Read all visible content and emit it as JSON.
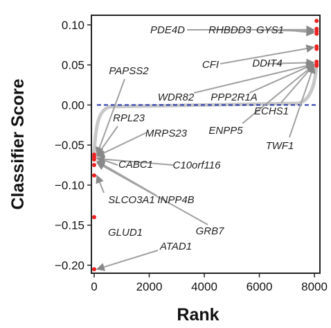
{
  "chart_data": {
    "type": "scatter",
    "title": "",
    "xlabel": "Rank",
    "ylabel": "Classifier Score",
    "xlim": [
      -100,
      8200
    ],
    "ylim": [
      -0.21,
      0.112
    ],
    "xticks": [
      0,
      2000,
      4000,
      6000,
      8000
    ],
    "xtick_labels": [
      "0",
      "2000",
      "4000",
      "6000",
      "8000"
    ],
    "yticks": [
      0.1,
      0.05,
      0.0,
      -0.05,
      -0.1,
      -0.15,
      -0.2
    ],
    "ytick_labels": [
      "0.10",
      "0.05",
      "0.00",
      "−0.05",
      "−0.10",
      "−0.15",
      "−0.20"
    ],
    "reference_line": {
      "y": 0.0,
      "style": "dashed",
      "color": "#2233aa"
    },
    "colors": {
      "highlight": "#ee2222",
      "background_points": "#c8c8c8",
      "arrow": "#a0a0a0"
    },
    "points": [
      {
        "x": 1,
        "y": -0.205
      },
      {
        "x": 1,
        "y": -0.14
      },
      {
        "x": 1,
        "y": -0.088
      },
      {
        "x": 1,
        "y": -0.075
      },
      {
        "x": 1,
        "y": -0.068
      },
      {
        "x": 1,
        "y": -0.065
      },
      {
        "x": 1,
        "y": -0.062
      },
      {
        "x": 8080,
        "y": 0.105
      },
      {
        "x": 8080,
        "y": 0.095
      },
      {
        "x": 8080,
        "y": 0.092
      },
      {
        "x": 8080,
        "y": 0.089
      },
      {
        "x": 8080,
        "y": 0.073
      },
      {
        "x": 8080,
        "y": 0.07
      },
      {
        "x": 8080,
        "y": 0.054
      },
      {
        "x": 8080,
        "y": 0.051
      },
      {
        "x": 8080,
        "y": 0.049
      }
    ],
    "annotations": [
      {
        "label": "PDE4D",
        "point": {
          "x": 8080,
          "y": 0.094
        }
      },
      {
        "label": "RHBDD3",
        "point": {
          "x": 8080,
          "y": 0.092
        }
      },
      {
        "label": "GYS1",
        "point": {
          "x": 8080,
          "y": 0.09
        }
      },
      {
        "label": "CFI",
        "point": {
          "x": 8080,
          "y": 0.072
        }
      },
      {
        "label": "DDIT4",
        "point": {
          "x": 8080,
          "y": 0.053
        }
      },
      {
        "label": "WDR82",
        "point": {
          "x": 8080,
          "y": 0.051
        }
      },
      {
        "label": "PPP2R1A",
        "point": {
          "x": 8080,
          "y": 0.051
        }
      },
      {
        "label": "ECHS1",
        "point": {
          "x": 8080,
          "y": 0.05
        }
      },
      {
        "label": "ENPP5",
        "point": {
          "x": 8080,
          "y": 0.05
        }
      },
      {
        "label": "TWF1",
        "point": {
          "x": 8080,
          "y": 0.049
        }
      },
      {
        "label": "PAPSS2",
        "point": {
          "x": 1,
          "y": -0.062
        }
      },
      {
        "label": "RPL23",
        "point": {
          "x": 1,
          "y": -0.063
        }
      },
      {
        "label": "MRPS23",
        "point": {
          "x": 1,
          "y": -0.064
        }
      },
      {
        "label": "CABC1",
        "point": {
          "x": 1,
          "y": -0.066
        }
      },
      {
        "label": "C10orf116",
        "point": {
          "x": 1,
          "y": -0.067
        }
      },
      {
        "label": "INPP4B",
        "point": {
          "x": 1,
          "y": -0.07
        }
      },
      {
        "label": "GRB7",
        "point": {
          "x": 1,
          "y": -0.072
        }
      },
      {
        "label": "SLCO3A1",
        "point": {
          "x": 1,
          "y": -0.088
        }
      },
      {
        "label": "GLUD1",
        "point": {
          "x": 1,
          "y": -0.14
        }
      },
      {
        "label": "ATAD1",
        "point": {
          "x": 1,
          "y": -0.205
        }
      }
    ]
  }
}
